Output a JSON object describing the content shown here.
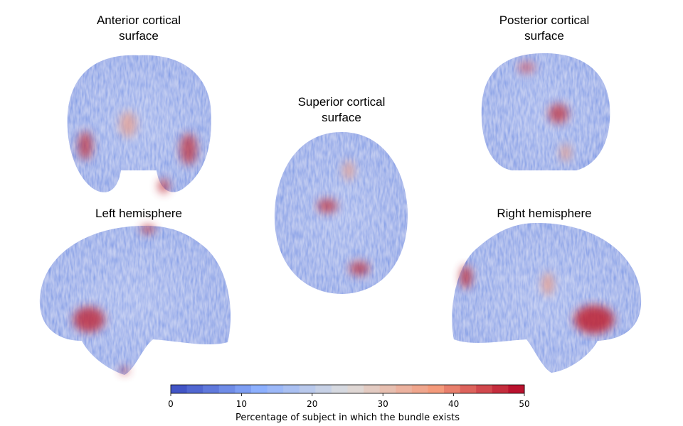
{
  "panels": [
    {
      "title": [
        "Anterior cortical",
        "surface"
      ]
    },
    {
      "title": [
        "Posterior cortical",
        "surface"
      ]
    },
    {
      "title": [
        "Superior cortical",
        "surface"
      ]
    },
    {
      "title": [
        "Left hemisphere"
      ]
    },
    {
      "title": [
        "Right hemisphere"
      ]
    }
  ],
  "colorbar": {
    "label": "Percentage of subject in which the bundle exists",
    "lim": [
      0,
      50
    ],
    "ticks": [
      0,
      10,
      20,
      30,
      40,
      50
    ]
  }
}
